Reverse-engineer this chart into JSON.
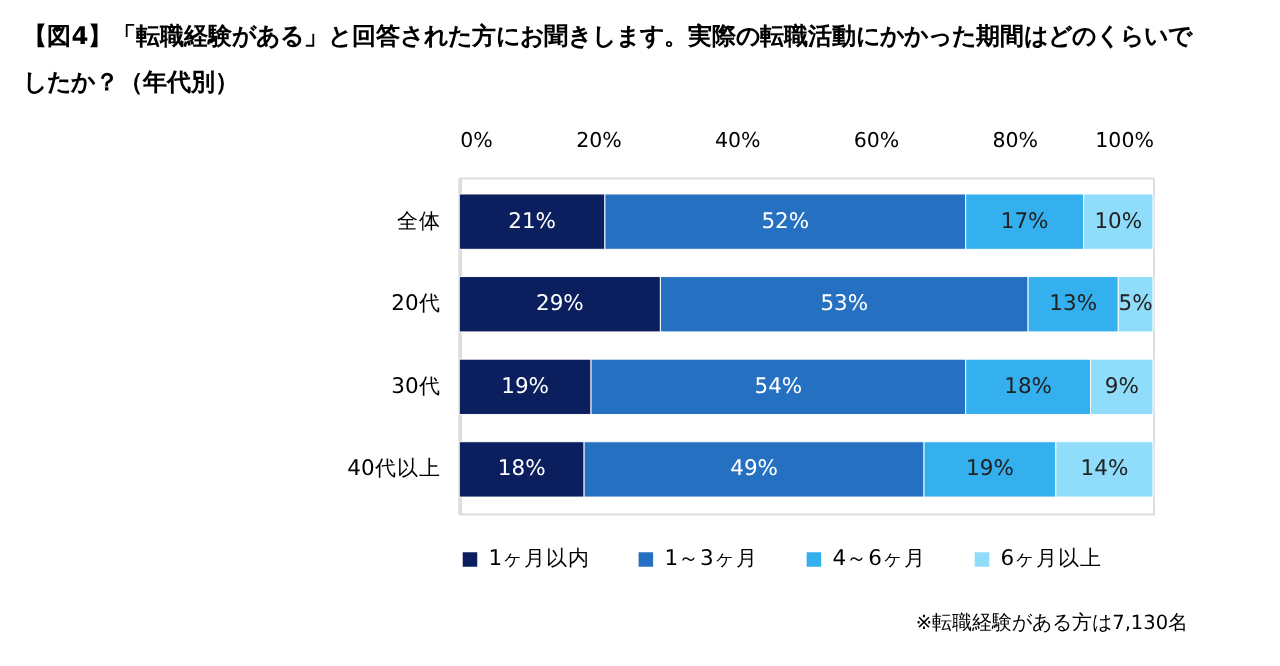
{
  "chart_data": {
    "type": "bar",
    "orientation": "horizontal",
    "stacked": true,
    "title": "【図4】「転職経験がある」と回答された方にお聞きします。実際の転職活動にかかった期間はどのくらいでしたか？（年代別）",
    "categories": [
      "全体",
      "20代",
      "30代",
      "40代以上"
    ],
    "series": [
      {
        "name": "1ヶ月以内",
        "color": "#0b1f5e",
        "values": [
          21,
          29,
          19,
          18
        ]
      },
      {
        "name": "1～3ヶ月",
        "color": "#2570c0",
        "values": [
          52,
          53,
          54,
          49
        ]
      },
      {
        "name": "4～6ヶ月",
        "color": "#35b0ee",
        "values": [
          17,
          13,
          18,
          19
        ]
      },
      {
        "name": "6ヶ月以上",
        "color": "#8fddfb",
        "values": [
          10,
          5,
          9,
          14
        ]
      }
    ],
    "xlim": [
      0,
      100
    ],
    "xticks": [
      {
        "value": 0,
        "label": "0%"
      },
      {
        "value": 20,
        "label": "20%"
      },
      {
        "value": 40,
        "label": "40%"
      },
      {
        "value": 60,
        "label": "60%"
      },
      {
        "value": 80,
        "label": "80%"
      },
      {
        "value": 100,
        "label": "100%"
      }
    ],
    "value_labels": [
      [
        "21%",
        "29%",
        "19%",
        "18%"
      ],
      [
        "52%",
        "53%",
        "54%",
        "49%"
      ],
      [
        "17%",
        "13%",
        "18%",
        "19%"
      ],
      [
        "10%",
        "5%",
        "9%",
        "14%"
      ]
    ],
    "legend": "bottom",
    "grid": false,
    "annotations": [
      "※転職経験がある方は7,130名"
    ]
  }
}
